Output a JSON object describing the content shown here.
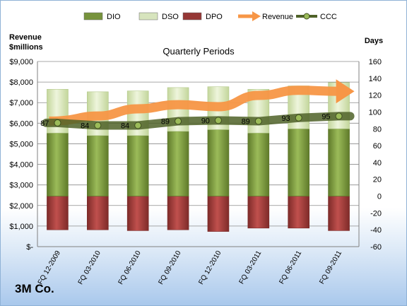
{
  "chart_data": {
    "type": "bar",
    "subtitle": "Quarterly Periods",
    "company": "3M Co.",
    "left_axis_title": [
      "Revenue",
      "$millions"
    ],
    "right_axis_title": "Days",
    "categories": [
      "FQ 12-2009",
      "FQ 03-2010",
      "FQ 06-2010",
      "FQ 09-2010",
      "FQ 12-2010",
      "FQ 03-2011",
      "FQ 06-2011",
      "FQ 09-2011"
    ],
    "left_axis": {
      "ylim": [
        0,
        9000
      ],
      "ticks": [
        0,
        1000,
        2000,
        3000,
        4000,
        5000,
        6000,
        7000,
        8000,
        9000
      ],
      "tick_labels": [
        "$-",
        "$1,000",
        "$2,000",
        "$3,000",
        "$4,000",
        "$5,000",
        "$6,000",
        "$7,000",
        "$8,000",
        "$9,000"
      ]
    },
    "right_axis": {
      "ylim": [
        -60,
        160
      ],
      "ticks": [
        -60,
        -40,
        -20,
        0,
        20,
        40,
        60,
        80,
        100,
        120,
        140,
        160
      ],
      "tick_labels": [
        "-60",
        "-40",
        "-20",
        "0",
        "20",
        "40",
        "60",
        "80",
        "100",
        "120",
        "140",
        "160"
      ]
    },
    "legend": {
      "position": "top",
      "entries": [
        {
          "name": "DIO",
          "color": "#77933c",
          "kind": "bar"
        },
        {
          "name": "DSO",
          "color": "#d7e4bd",
          "kind": "bar"
        },
        {
          "name": "DPO",
          "color": "#953735",
          "kind": "bar"
        },
        {
          "name": "Revenue",
          "color": "#f79646",
          "kind": "arrow"
        },
        {
          "name": "CCC",
          "color": "#4f6228",
          "kind": "line"
        }
      ]
    },
    "series": [
      {
        "name": "DIO",
        "axis": "right",
        "values": [
          75,
          72,
          72,
          77,
          79,
          75,
          80,
          80
        ]
      },
      {
        "name": "DSO",
        "axis": "right",
        "values": [
          52,
          52,
          53,
          52,
          51,
          52,
          51,
          55
        ]
      },
      {
        "name": "DPO",
        "axis": "right",
        "values": [
          -40,
          -40,
          -41,
          -40,
          -42,
          -38,
          -38,
          -41
        ]
      },
      {
        "name": "CCC",
        "axis": "right",
        "values": [
          87,
          84,
          84,
          89,
          90,
          89,
          93,
          95
        ]
      },
      {
        "name": "Revenue",
        "axis": "left",
        "values": [
          6100,
          6350,
          6700,
          6900,
          6800,
          7350,
          7600,
          7550
        ]
      }
    ],
    "grid": true
  }
}
